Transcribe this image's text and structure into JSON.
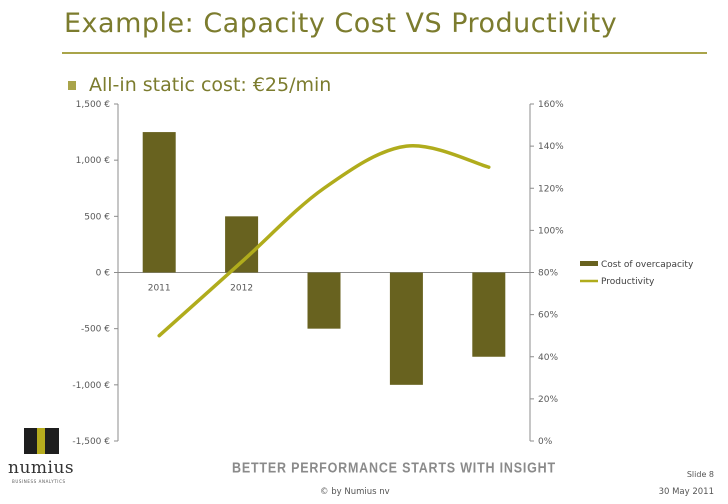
{
  "slide": {
    "title": "Example: Capacity Cost VS Productivity",
    "bullet": "All-in static cost: €25/min",
    "tagline": "BETTER PERFORMANCE STARTS WITH INSIGHT",
    "slide_number": "Slide 8",
    "copyright": "© by Numius nv",
    "date": "30 May 2011",
    "logo": {
      "name": "numius",
      "sub": "BUSINESS ANALYTICS"
    }
  },
  "colors": {
    "accent": "#a9a44a",
    "title": "#7c7c2e",
    "bar": "#68621f",
    "line": "#b0ac1c"
  },
  "chart_data": {
    "type": "bar",
    "categories": [
      "2011",
      "2012",
      "",
      "",
      ""
    ],
    "series": [
      {
        "name": "Cost of overcapacity",
        "type": "bar",
        "axis": "left",
        "values": [
          1250,
          500,
          -500,
          -1000,
          -750
        ]
      },
      {
        "name": "Productivity",
        "type": "line",
        "axis": "right",
        "values": [
          50,
          85,
          120,
          140,
          130
        ]
      }
    ],
    "y_left": {
      "ticks": [
        "1,500 €",
        "1,000 €",
        "500 €",
        "0 €",
        "-500 €",
        "-1,000 €",
        "-1,500 €"
      ],
      "min": -1500,
      "max": 1500
    },
    "y_right": {
      "ticks": [
        "160%",
        "140%",
        "120%",
        "100%",
        "80%",
        "60%",
        "40%",
        "20%",
        "0%"
      ],
      "min": 0,
      "max": 160
    },
    "grid": false,
    "legend_position": "right"
  }
}
